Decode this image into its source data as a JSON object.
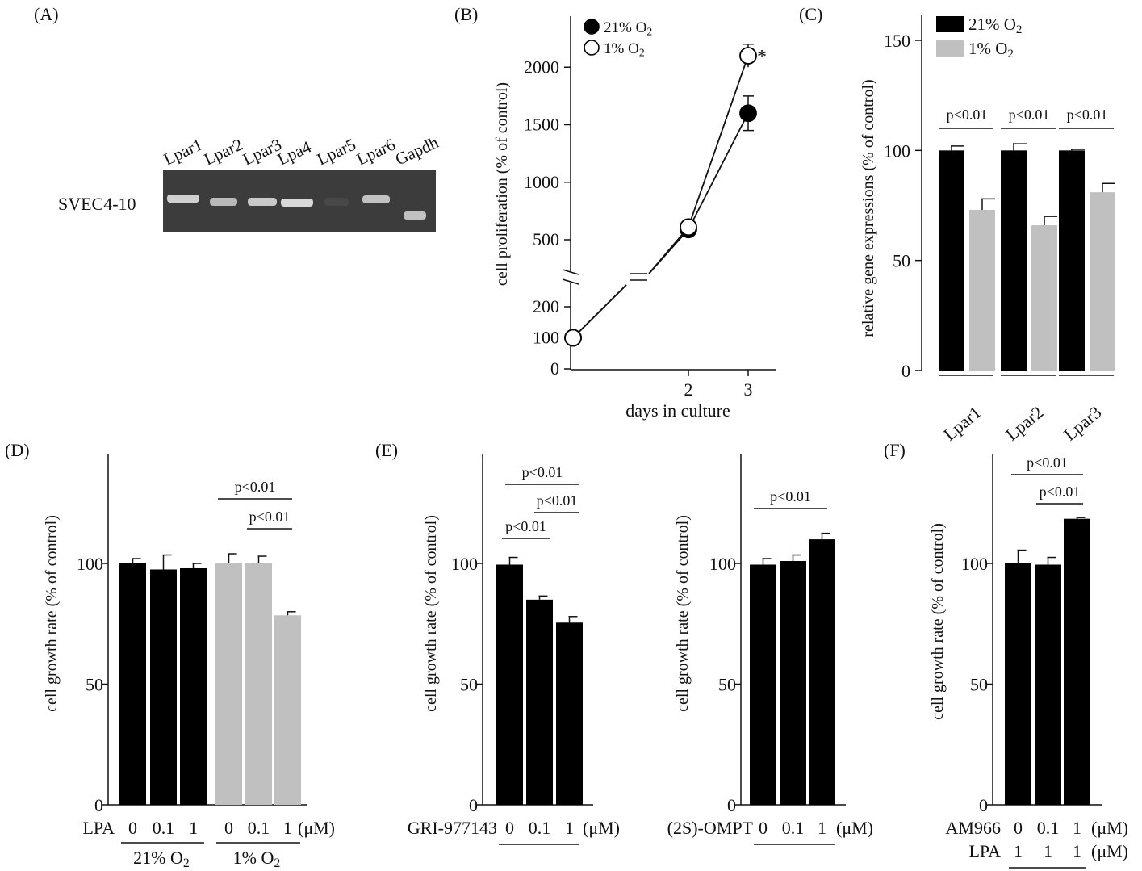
{
  "panel_A": {
    "label": "(A)",
    "row_label": "SVEC4-10",
    "lanes": [
      "Lpar1",
      "Lpar2",
      "Lpar3",
      "Lpa4",
      "Lpar5",
      "Lpar6",
      "Gapdh"
    ],
    "band_intensity": [
      0.95,
      0.8,
      0.9,
      1.0,
      0.08,
      0.85,
      0.85
    ]
  },
  "chart_data": [
    {
      "id": "B",
      "label": "(B)",
      "type": "line",
      "xlabel": "days in culture",
      "ylabel": "cell proliferation (% of control)",
      "x_ticks": [
        "2",
        "3"
      ],
      "y_ticks": [
        "0",
        "100",
        "200",
        "500",
        "1000",
        "1500",
        "2000"
      ],
      "series": [
        {
          "name": "21% O2",
          "legend": "21% O",
          "sub": "2",
          "marker": "filled",
          "x": [
            0,
            2,
            3
          ],
          "y": [
            100,
            590,
            1600
          ],
          "err": [
            0,
            0,
            150
          ]
        },
        {
          "name": "1% O2",
          "legend": "1% O",
          "sub": "2",
          "marker": "open",
          "x": [
            0,
            2,
            3
          ],
          "y": [
            100,
            610,
            2100
          ],
          "err": [
            0,
            0,
            100
          ]
        }
      ],
      "annotation": "*"
    },
    {
      "id": "C",
      "label": "(C)",
      "type": "bar",
      "ylabel": "relative gene expressions (% of control)",
      "y_ticks": [
        "0",
        "50",
        "100",
        "150"
      ],
      "ylim": [
        0,
        150
      ],
      "categories": [
        "Lpar1",
        "Lpar2",
        "Lpar3"
      ],
      "series": [
        {
          "name": "21% O2",
          "legend": "21% O",
          "sub": "2",
          "color": "#000000",
          "values": [
            100,
            100,
            100
          ],
          "err": [
            2,
            3,
            0.5
          ]
        },
        {
          "name": "1% O2",
          "legend": "1% O",
          "sub": "2",
          "color": "#c0c0c0",
          "values": [
            73,
            66,
            81
          ],
          "err": [
            5,
            4,
            4
          ]
        }
      ],
      "sig": [
        "p<0.01",
        "p<0.01",
        "p<0.01"
      ]
    },
    {
      "id": "D",
      "label": "(D)",
      "type": "bar",
      "ylabel": "cell growth rate (% of control)",
      "y_ticks": [
        "0",
        "50",
        "100"
      ],
      "ylim": [
        0,
        150
      ],
      "factor_label": "LPA",
      "x_labels": [
        "0",
        "0.1",
        "1",
        "0",
        "0.1",
        "1"
      ],
      "unit": "(μM)",
      "values": [
        100,
        97.5,
        98,
        100,
        100,
        78.5
      ],
      "err": [
        2,
        6,
        2,
        4,
        3,
        1.5
      ],
      "colors": [
        "#000000",
        "#000000",
        "#000000",
        "#c0c0c0",
        "#c0c0c0",
        "#c0c0c0"
      ],
      "group_labels": [
        {
          "text": "21% O",
          "sub": "2"
        },
        {
          "text": "1% O",
          "sub": "2"
        }
      ],
      "sig": [
        "p<0.01",
        "p<0.01"
      ]
    },
    {
      "id": "E1",
      "label": "(E)",
      "type": "bar",
      "ylabel": "cell growth rate (% of control)",
      "y_ticks": [
        "0",
        "50",
        "100"
      ],
      "ylim": [
        0,
        150
      ],
      "factor_label": "GRI-977143",
      "x_labels": [
        "0",
        "0.1",
        "1"
      ],
      "unit": "(μM)",
      "values": [
        99.5,
        85,
        75.5
      ],
      "err": [
        3,
        1.5,
        2.5
      ],
      "colors": [
        "#000000",
        "#000000",
        "#000000"
      ],
      "sig": [
        "p<0.01",
        "p<0.01",
        "p<0.01"
      ]
    },
    {
      "id": "E2",
      "label": "",
      "type": "bar",
      "ylabel": "cell growth rate (% of control)",
      "y_ticks": [
        "0",
        "50",
        "100"
      ],
      "ylim": [
        0,
        150
      ],
      "factor_label": "(2S)-OMPT",
      "x_labels": [
        "0",
        "0.1",
        "1"
      ],
      "unit": "(μM)",
      "values": [
        99.5,
        101,
        110
      ],
      "err": [
        2.5,
        2.5,
        2.5
      ],
      "colors": [
        "#000000",
        "#000000",
        "#000000"
      ],
      "sig": [
        "p<0.01"
      ]
    },
    {
      "id": "F",
      "label": "(F)",
      "type": "bar",
      "ylabel": "cell growth rate (% of control)",
      "y_ticks": [
        "0",
        "50",
        "100"
      ],
      "ylim": [
        0,
        150
      ],
      "factor_label": "AM966",
      "factor_label2": "LPA",
      "x_labels": [
        "0",
        "0.1",
        "1"
      ],
      "x_labels2": [
        "1",
        "1",
        "1"
      ],
      "unit": "(μM)",
      "values": [
        100,
        99.5,
        118.5
      ],
      "err": [
        5.5,
        3,
        0.5
      ],
      "colors": [
        "#000000",
        "#000000",
        "#000000"
      ],
      "sig": [
        "p<0.01",
        "p<0.01"
      ]
    }
  ]
}
